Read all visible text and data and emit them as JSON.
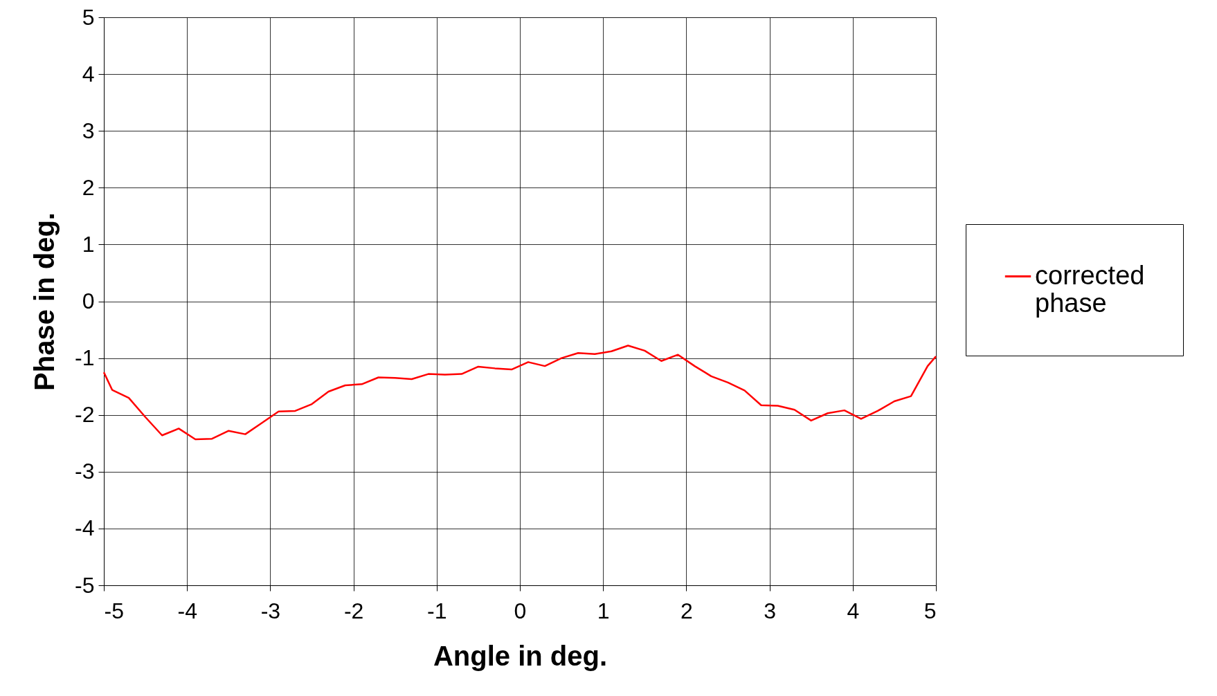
{
  "chart_data": {
    "type": "line",
    "xlabel": "Angle in deg.",
    "ylabel": "Phase in deg.",
    "x": [
      -5,
      -4.9,
      -4.7,
      -4.5,
      -4.3,
      -4.1,
      -3.9,
      -3.7,
      -3.5,
      -3.3,
      -3.1,
      -2.9,
      -2.7,
      -2.5,
      -2.3,
      -2.1,
      -1.9,
      -1.7,
      -1.5,
      -1.3,
      -1.1,
      -0.9,
      -0.7,
      -0.5,
      -0.3,
      -0.1,
      0.1,
      0.3,
      0.5,
      0.7,
      0.9,
      1.1,
      1.3,
      1.5,
      1.7,
      1.9,
      2.1,
      2.3,
      2.5,
      2.7,
      2.9,
      3.1,
      3.3,
      3.5,
      3.7,
      3.9,
      4.1,
      4.3,
      4.5,
      4.7,
      4.9,
      5
    ],
    "series": [
      {
        "name": "corrected phase",
        "color": "#ff0000",
        "values": [
          -1.25,
          -1.56,
          -1.7,
          -2.04,
          -2.36,
          -2.24,
          -2.43,
          -2.42,
          -2.28,
          -2.34,
          -2.14,
          -1.94,
          -1.93,
          -1.81,
          -1.59,
          -1.48,
          -1.46,
          -1.34,
          -1.35,
          -1.37,
          -1.28,
          -1.29,
          -1.28,
          -1.15,
          -1.18,
          -1.2,
          -1.07,
          -1.14,
          -1.0,
          -0.91,
          -0.93,
          -0.88,
          -0.78,
          -0.87,
          -1.05,
          -0.94,
          -1.14,
          -1.32,
          -1.43,
          -1.57,
          -1.83,
          -1.84,
          -1.91,
          -2.1,
          -1.97,
          -1.92,
          -2.07,
          -1.93,
          -1.76,
          -1.67,
          -1.14,
          -0.97
        ]
      }
    ],
    "xlim": [
      -5,
      5
    ],
    "ylim": [
      -5,
      5
    ],
    "xticks": [
      -5,
      -4,
      -3,
      -2,
      -1,
      0,
      1,
      2,
      3,
      4,
      5
    ],
    "yticks": [
      -5,
      -4,
      -3,
      -2,
      -1,
      0,
      1,
      2,
      3,
      4,
      5
    ],
    "grid": true,
    "legend": "right"
  }
}
